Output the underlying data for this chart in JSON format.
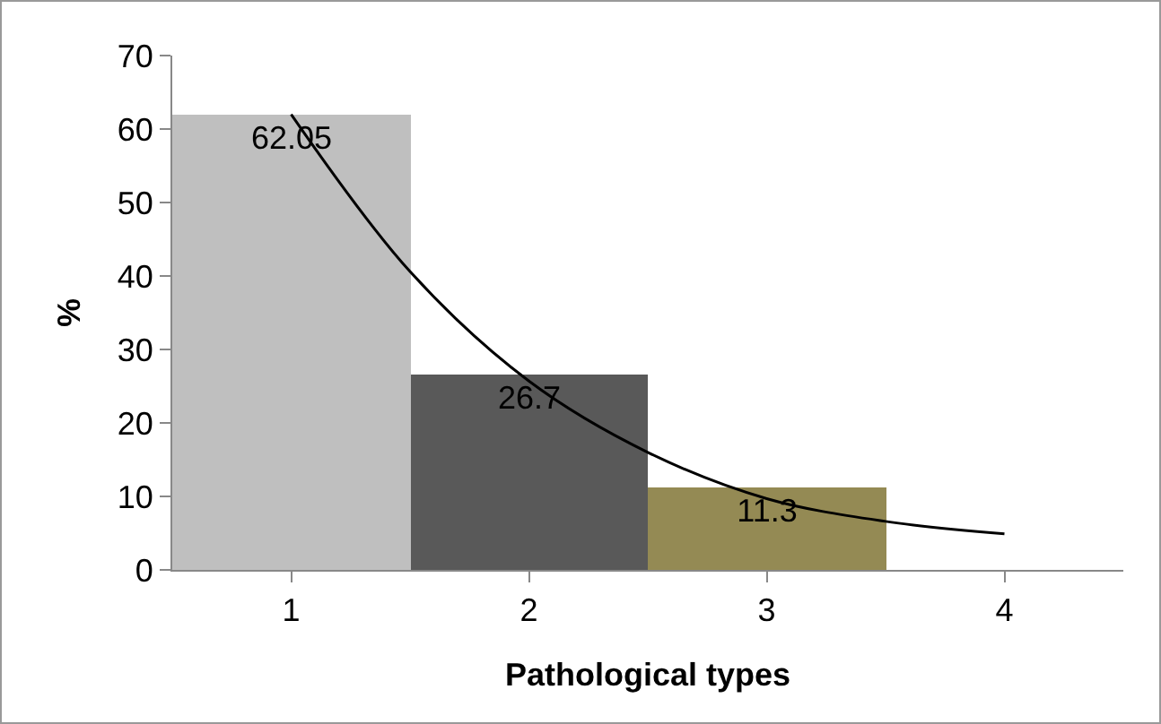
{
  "chart_data": {
    "type": "bar",
    "xlabel": "Pathological types",
    "ylabel": "%",
    "x": [
      1,
      2,
      3
    ],
    "series": [
      {
        "colors": [
          "#bfbfbf",
          "#595959",
          "#948a54"
        ],
        "values": [
          62.05,
          26.7,
          11.3
        ],
        "value_labels": [
          "62.05",
          "26.7",
          "11.3"
        ]
      },
      {
        "type": "line",
        "color": "#000000",
        "x": [
          1,
          1.5,
          2,
          2.5,
          3,
          3.5,
          4
        ],
        "values": [
          62,
          40.6,
          25.7,
          16,
          9.7,
          6.6,
          4.9
        ],
        "marker": "none",
        "line_style": "solid"
      }
    ],
    "xlim": [
      0.5,
      4.5
    ],
    "xticks": [
      1,
      2,
      3,
      4
    ],
    "ylim": [
      0,
      70
    ],
    "yticks": [
      0,
      10,
      20,
      30,
      40,
      50,
      60,
      70
    ],
    "grid": false
  }
}
